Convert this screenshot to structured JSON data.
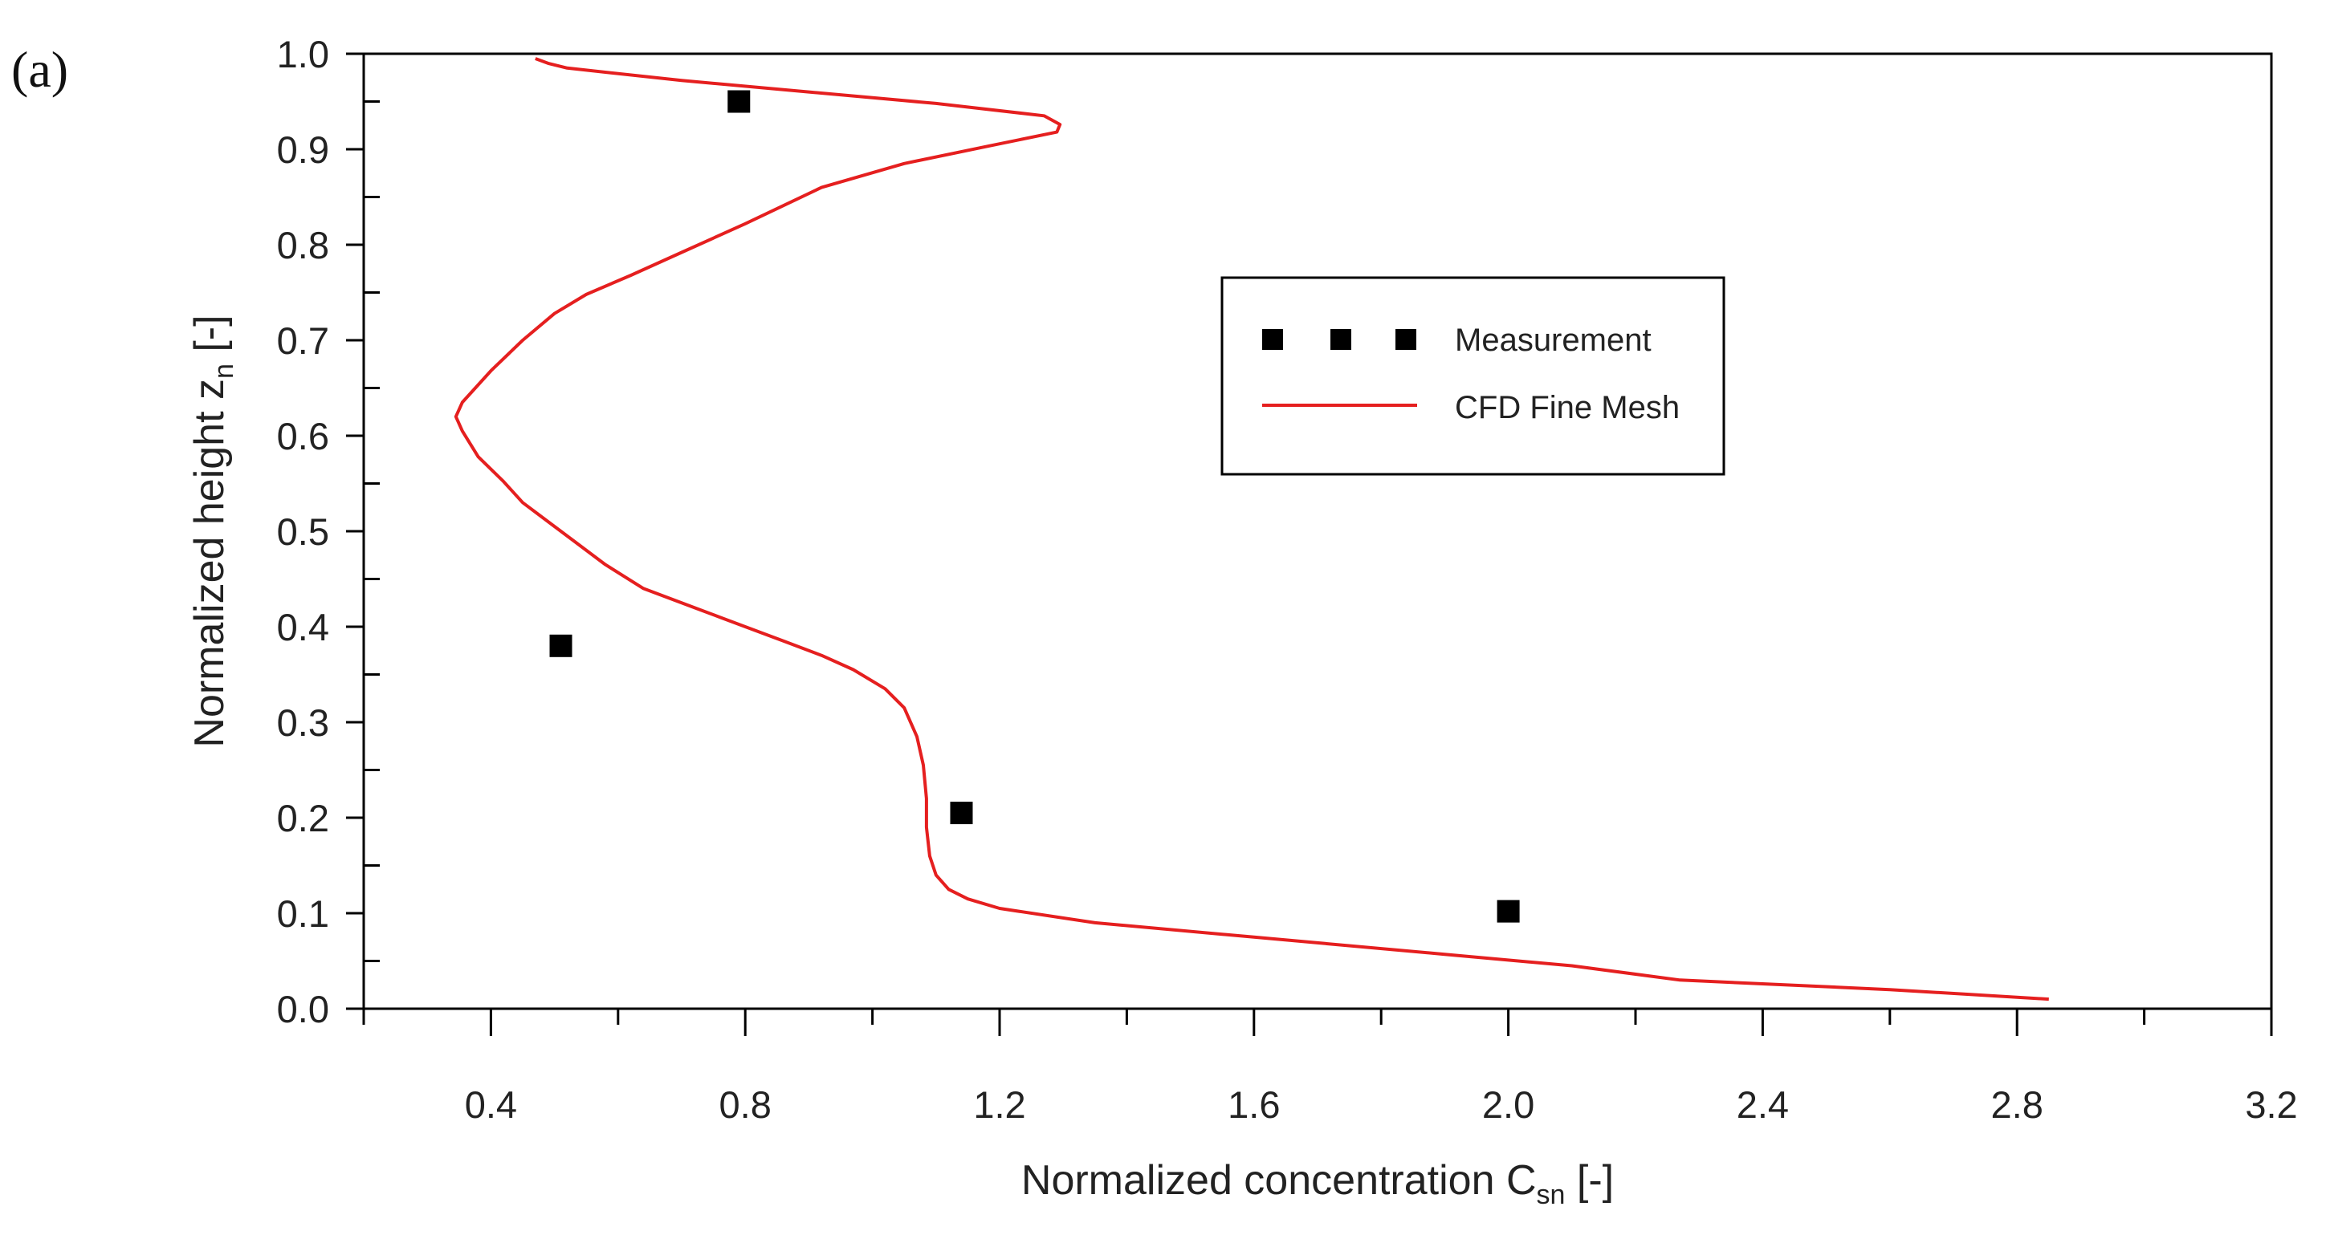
{
  "panel_label": "(a)",
  "chart_data": {
    "type": "line",
    "title": "",
    "xlabel_main": "Normalized concentration C",
    "xlabel_sub": "sn",
    "xlabel_suffix": " [-]",
    "ylabel_main": "Normalized height z",
    "ylabel_sub": "n",
    "ylabel_suffix": " [-]",
    "xlim": [
      0.2,
      3.2
    ],
    "ylim": [
      0.0,
      1.0
    ],
    "x_ticks": [
      0.4,
      0.8,
      1.2,
      1.6,
      2.0,
      2.4,
      2.8,
      3.2
    ],
    "x_tick_labels": [
      "0.4",
      "0.8",
      "1.2",
      "1.6",
      "2.0",
      "2.4",
      "2.8",
      "3.2"
    ],
    "x_minor_ticks": [
      0.2,
      0.6,
      1.0,
      1.4,
      1.8,
      2.2,
      2.6,
      3.0
    ],
    "y_ticks": [
      0.0,
      0.1,
      0.2,
      0.3,
      0.4,
      0.5,
      0.6,
      0.7,
      0.8,
      0.9,
      1.0
    ],
    "y_tick_labels": [
      "0.0",
      "0.1",
      "0.2",
      "0.3",
      "0.4",
      "0.5",
      "0.6",
      "0.7",
      "0.8",
      "0.9",
      "1.0"
    ],
    "y_minor_ticks": [
      0.05,
      0.15,
      0.25,
      0.35,
      0.45,
      0.55,
      0.65,
      0.75,
      0.85,
      0.95
    ],
    "grid": false,
    "legend_position": "upper-middle-right",
    "series": [
      {
        "name": "Measurement",
        "kind": "scatter",
        "marker": "square",
        "color": "#000000",
        "x": [
          0.79,
          0.51,
          1.14,
          2.0
        ],
        "y": [
          0.95,
          0.38,
          0.205,
          0.102
        ]
      },
      {
        "name": "CFD Fine Mesh",
        "kind": "line",
        "color": "#e51f1f",
        "x": [
          2.85,
          2.6,
          2.27,
          2.1,
          1.9,
          1.6,
          1.35,
          1.2,
          1.15,
          1.12,
          1.1,
          1.09,
          1.085,
          1.085,
          1.08,
          1.07,
          1.05,
          1.02,
          0.97,
          0.92,
          0.86,
          0.8,
          0.76,
          0.7,
          0.64,
          0.58,
          0.53,
          0.49,
          0.45,
          0.42,
          0.38,
          0.355,
          0.345,
          0.355,
          0.4,
          0.45,
          0.5,
          0.55,
          0.62,
          0.7,
          0.8,
          0.92,
          1.05,
          1.18,
          1.29,
          1.295,
          1.27,
          1.1,
          0.9,
          0.7,
          0.52,
          0.49,
          0.47
        ],
        "y": [
          0.01,
          0.02,
          0.03,
          0.045,
          0.057,
          0.075,
          0.09,
          0.105,
          0.115,
          0.125,
          0.14,
          0.16,
          0.19,
          0.22,
          0.255,
          0.285,
          0.315,
          0.335,
          0.355,
          0.37,
          0.385,
          0.4,
          0.41,
          0.425,
          0.44,
          0.465,
          0.49,
          0.51,
          0.53,
          0.552,
          0.578,
          0.605,
          0.62,
          0.635,
          0.668,
          0.7,
          0.728,
          0.748,
          0.768,
          0.792,
          0.822,
          0.86,
          0.885,
          0.903,
          0.918,
          0.926,
          0.935,
          0.948,
          0.96,
          0.972,
          0.985,
          0.99,
          0.995
        ]
      }
    ]
  }
}
